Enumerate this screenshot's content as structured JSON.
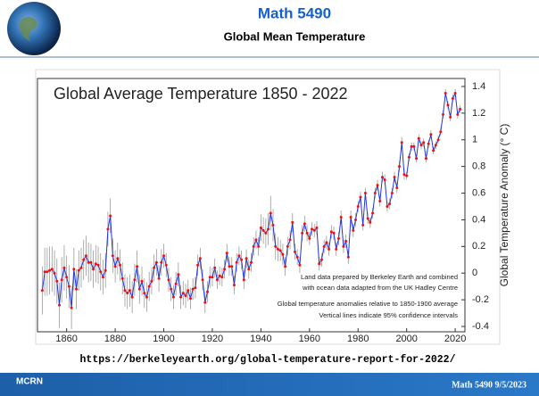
{
  "header": {
    "title": "Math 5490",
    "subtitle": "Global Mean Temperature"
  },
  "chart_data": {
    "type": "line",
    "title": "Global Average Temperature 1850 - 2022",
    "y_label": "Global Temperature Anomaly (° C)",
    "annotations": [
      "Land data prepared by Berkeley Earth and combined",
      "with ocean data adapted from the UK Hadley Centre",
      "Global temperature anomalies relative to 1850-1900 average",
      "Vertical lines indicate 95% confidence intervals"
    ],
    "line_color": "#2233dd",
    "marker_color": "#ee1111",
    "error_color": "#999999",
    "xlim": [
      1848,
      2024
    ],
    "xticks": [
      1860,
      1880,
      1900,
      1920,
      1940,
      1960,
      1980,
      2000,
      2020
    ],
    "ylim": [
      -0.44,
      1.46
    ],
    "yticks": [
      -0.4,
      -0.2,
      0,
      0.2,
      0.4,
      0.6,
      0.8,
      1,
      1.2,
      1.4
    ],
    "x": [
      1850,
      1851,
      1852,
      1853,
      1854,
      1855,
      1856,
      1857,
      1858,
      1859,
      1860,
      1861,
      1862,
      1863,
      1864,
      1865,
      1866,
      1867,
      1868,
      1869,
      1870,
      1871,
      1872,
      1873,
      1874,
      1875,
      1876,
      1877,
      1878,
      1879,
      1880,
      1881,
      1882,
      1883,
      1884,
      1885,
      1886,
      1887,
      1888,
      1889,
      1890,
      1891,
      1892,
      1893,
      1894,
      1895,
      1896,
      1897,
      1898,
      1899,
      1900,
      1901,
      1902,
      1903,
      1904,
      1905,
      1906,
      1907,
      1908,
      1909,
      1910,
      1911,
      1912,
      1913,
      1914,
      1915,
      1916,
      1917,
      1918,
      1919,
      1920,
      1921,
      1922,
      1923,
      1924,
      1925,
      1926,
      1927,
      1928,
      1929,
      1930,
      1931,
      1932,
      1933,
      1934,
      1935,
      1936,
      1937,
      1938,
      1939,
      1940,
      1941,
      1942,
      1943,
      1944,
      1945,
      1946,
      1947,
      1948,
      1949,
      1950,
      1951,
      1952,
      1953,
      1954,
      1955,
      1956,
      1957,
      1958,
      1959,
      1960,
      1961,
      1962,
      1963,
      1964,
      1965,
      1966,
      1967,
      1968,
      1969,
      1970,
      1971,
      1972,
      1973,
      1974,
      1975,
      1976,
      1977,
      1978,
      1979,
      1980,
      1981,
      1982,
      1983,
      1984,
      1985,
      1986,
      1987,
      1988,
      1989,
      1990,
      1991,
      1992,
      1993,
      1994,
      1995,
      1996,
      1997,
      1998,
      1999,
      2000,
      2001,
      2002,
      2003,
      2004,
      2005,
      2006,
      2007,
      2008,
      2009,
      2010,
      2011,
      2012,
      2013,
      2014,
      2015,
      2016,
      2017,
      2018,
      2019,
      2020,
      2021,
      2022
    ],
    "values": [
      -0.13,
      0.01,
      0.01,
      0.02,
      0.03,
      0.0,
      -0.06,
      -0.24,
      -0.05,
      0.04,
      -0.03,
      -0.1,
      -0.26,
      0.03,
      -0.12,
      0.02,
      0.04,
      0.1,
      0.13,
      0.08,
      0.08,
      0.03,
      0.07,
      0.06,
      0.01,
      -0.03,
      0.02,
      0.33,
      0.43,
      0.13,
      0.05,
      0.11,
      0.06,
      -0.04,
      -0.13,
      -0.15,
      -0.13,
      -0.18,
      -0.05,
      0.05,
      -0.12,
      -0.06,
      -0.15,
      -0.18,
      -0.1,
      -0.06,
      0.04,
      0.08,
      -0.04,
      0.08,
      0.13,
      0.06,
      -0.05,
      -0.12,
      -0.18,
      -0.08,
      -0.01,
      -0.18,
      -0.15,
      -0.17,
      -0.13,
      -0.19,
      -0.12,
      -0.11,
      0.06,
      0.11,
      -0.05,
      -0.22,
      -0.14,
      -0.03,
      -0.03,
      0.04,
      -0.05,
      -0.02,
      -0.03,
      0.03,
      0.15,
      0.05,
      0.05,
      -0.09,
      0.08,
      0.13,
      0.1,
      -0.05,
      0.11,
      0.03,
      0.08,
      0.2,
      0.25,
      0.2,
      0.34,
      0.32,
      0.3,
      0.33,
      0.45,
      0.36,
      0.2,
      0.18,
      0.17,
      0.14,
      0.05,
      0.2,
      0.25,
      0.38,
      0.16,
      0.12,
      0.06,
      0.3,
      0.37,
      0.3,
      0.26,
      0.33,
      0.32,
      0.34,
      0.07,
      0.1,
      0.2,
      0.23,
      0.18,
      0.31,
      0.3,
      0.18,
      0.26,
      0.42,
      0.2,
      0.24,
      0.12,
      0.42,
      0.32,
      0.4,
      0.5,
      0.57,
      0.36,
      0.6,
      0.41,
      0.38,
      0.45,
      0.6,
      0.66,
      0.54,
      0.72,
      0.7,
      0.5,
      0.52,
      0.6,
      0.72,
      0.64,
      0.8,
      0.98,
      0.74,
      0.73,
      0.87,
      0.95,
      0.95,
      0.86,
      1.01,
      0.96,
      0.98,
      0.86,
      0.97,
      1.04,
      0.92,
      0.96,
      1.0,
      1.06,
      1.19,
      1.35,
      1.26,
      1.17,
      1.31,
      1.35,
      1.19,
      1.23
    ],
    "errors": [
      0.18,
      0.18,
      0.18,
      0.18,
      0.17,
      0.17,
      0.17,
      0.17,
      0.17,
      0.17,
      0.16,
      0.16,
      0.16,
      0.16,
      0.15,
      0.15,
      0.15,
      0.15,
      0.15,
      0.15,
      0.14,
      0.14,
      0.14,
      0.14,
      0.14,
      0.13,
      0.13,
      0.13,
      0.13,
      0.13,
      0.12,
      0.12,
      0.12,
      0.12,
      0.12,
      0.12,
      0.12,
      0.12,
      0.12,
      0.12,
      0.11,
      0.11,
      0.11,
      0.11,
      0.11,
      0.1,
      0.1,
      0.1,
      0.1,
      0.1,
      0.09,
      0.09,
      0.09,
      0.09,
      0.09,
      0.09,
      0.09,
      0.09,
      0.09,
      0.09,
      0.08,
      0.08,
      0.08,
      0.08,
      0.08,
      0.08,
      0.08,
      0.08,
      0.08,
      0.08,
      0.07,
      0.07,
      0.07,
      0.07,
      0.07,
      0.07,
      0.07,
      0.07,
      0.07,
      0.07,
      0.07,
      0.07,
      0.07,
      0.07,
      0.07,
      0.07,
      0.07,
      0.07,
      0.07,
      0.07,
      0.1,
      0.1,
      0.11,
      0.12,
      0.13,
      0.12,
      0.1,
      0.09,
      0.08,
      0.08,
      0.07,
      0.07,
      0.07,
      0.07,
      0.06,
      0.06,
      0.06,
      0.06,
      0.06,
      0.06,
      0.05,
      0.05,
      0.05,
      0.05,
      0.05,
      0.05,
      0.05,
      0.05,
      0.05,
      0.05,
      0.05,
      0.05,
      0.05,
      0.05,
      0.05,
      0.05,
      0.05,
      0.05,
      0.05,
      0.05,
      0.04,
      0.04,
      0.04,
      0.04,
      0.04,
      0.04,
      0.04,
      0.04,
      0.04,
      0.04,
      0.04,
      0.04,
      0.04,
      0.04,
      0.04,
      0.04,
      0.04,
      0.04,
      0.04,
      0.04,
      0.03,
      0.03,
      0.03,
      0.03,
      0.03,
      0.03,
      0.03,
      0.03,
      0.03,
      0.03,
      0.03,
      0.03,
      0.03,
      0.03,
      0.03,
      0.03,
      0.03,
      0.03,
      0.03,
      0.03,
      0.03,
      0.03,
      0.03
    ]
  },
  "source_url": "https://berkeleyearth.org/global-temperature-report-for-2022/",
  "footer": {
    "logo": "MCRN",
    "text": "Math 5490  9/5/2023"
  }
}
